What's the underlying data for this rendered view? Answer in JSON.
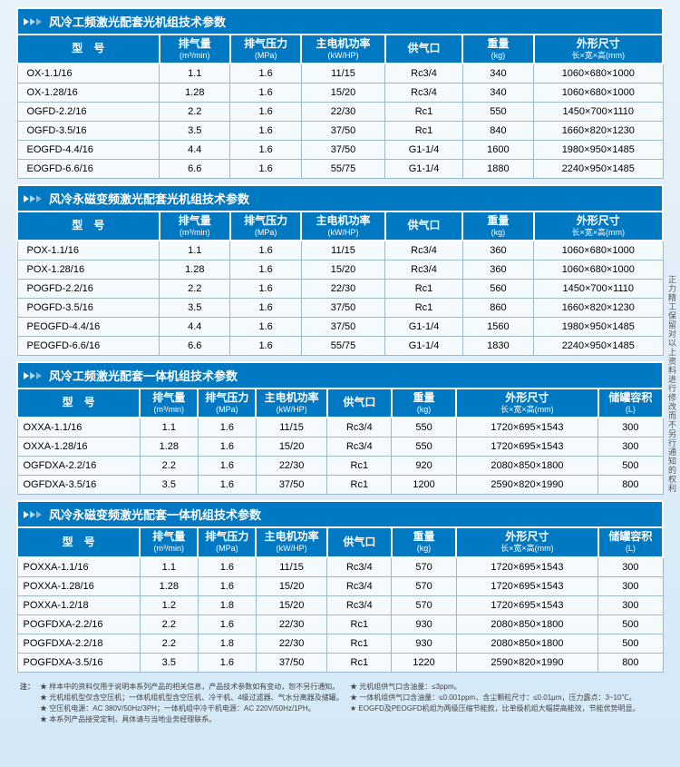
{
  "side_text": "正力精工保留对以上资料进行修改而不另行通知的权利",
  "headers7": {
    "model": "型　号",
    "displacement": "排气量",
    "displacement_sub": "(m³/min)",
    "pressure": "排气压力",
    "pressure_sub": "(MPa)",
    "power": "主电机功率",
    "power_sub": "(kW/HP)",
    "outlet": "供气口",
    "weight": "重量",
    "weight_sub": "(kg)",
    "dims": "外形尺寸",
    "dims_sub": "长×宽×高(mm)"
  },
  "headers8": {
    "model": "型　号",
    "displacement": "排气量",
    "displacement_sub": "(m³/min)",
    "pressure": "排气压力",
    "pressure_sub": "(MPa)",
    "power": "主电机功率",
    "power_sub": "(kW/HP)",
    "outlet": "供气口",
    "weight": "重量",
    "weight_sub": "(kg)",
    "dims": "外形尺寸",
    "dims_sub": "长×宽×高(mm)",
    "tank": "储罐容积",
    "tank_sub": "(L)"
  },
  "sections": [
    {
      "title": "风冷工频激光配套光机组技术参数",
      "cols": 7,
      "rows": [
        [
          "OX-1.1/16",
          "1.1",
          "1.6",
          "11/15",
          "Rc3/4",
          "340",
          "1060×680×1000"
        ],
        [
          "OX-1.28/16",
          "1.28",
          "1.6",
          "15/20",
          "Rc3/4",
          "340",
          "1060×680×1000"
        ],
        [
          "OGFD-2.2/16",
          "2.2",
          "1.6",
          "22/30",
          "Rc1",
          "550",
          "1450×700×1110"
        ],
        [
          "OGFD-3.5/16",
          "3.5",
          "1.6",
          "37/50",
          "Rc1",
          "840",
          "1660×820×1230"
        ],
        [
          "EOGFD-4.4/16",
          "4.4",
          "1.6",
          "37/50",
          "G1-1/4",
          "1600",
          "1980×950×1485"
        ],
        [
          "EOGFD-6.6/16",
          "6.6",
          "1.6",
          "55/75",
          "G1-1/4",
          "1880",
          "2240×950×1485"
        ]
      ]
    },
    {
      "title": "风冷永磁变频激光配套光机组技术参数",
      "cols": 7,
      "rows": [
        [
          "POX-1.1/16",
          "1.1",
          "1.6",
          "11/15",
          "Rc3/4",
          "360",
          "1060×680×1000"
        ],
        [
          "POX-1.28/16",
          "1.28",
          "1.6",
          "15/20",
          "Rc3/4",
          "360",
          "1060×680×1000"
        ],
        [
          "POGFD-2.2/16",
          "2.2",
          "1.6",
          "22/30",
          "Rc1",
          "560",
          "1450×700×1110"
        ],
        [
          "POGFD-3.5/16",
          "3.5",
          "1.6",
          "37/50",
          "Rc1",
          "860",
          "1660×820×1230"
        ],
        [
          "PEOGFD-4.4/16",
          "4.4",
          "1.6",
          "37/50",
          "G1-1/4",
          "1560",
          "1980×950×1485"
        ],
        [
          "PEOGFD-6.6/16",
          "6.6",
          "1.6",
          "55/75",
          "G1-1/4",
          "1830",
          "2240×950×1485"
        ]
      ]
    },
    {
      "title": "风冷工频激光配套一体机组技术参数",
      "cols": 8,
      "rows": [
        [
          "OXXA-1.1/16",
          "1.1",
          "1.6",
          "11/15",
          "Rc3/4",
          "550",
          "1720×695×1543",
          "300"
        ],
        [
          "OXXA-1.28/16",
          "1.28",
          "1.6",
          "15/20",
          "Rc3/4",
          "550",
          "1720×695×1543",
          "300"
        ],
        [
          "OGFDXA-2.2/16",
          "2.2",
          "1.6",
          "22/30",
          "Rc1",
          "920",
          "2080×850×1800",
          "500"
        ],
        [
          "OGFDXA-3.5/16",
          "3.5",
          "1.6",
          "37/50",
          "Rc1",
          "1200",
          "2590×820×1990",
          "800"
        ]
      ]
    },
    {
      "title": "风冷永磁变频激光配套一体机组技术参数",
      "cols": 8,
      "rows": [
        [
          "POXXA-1.1/16",
          "1.1",
          "1.6",
          "11/15",
          "Rc3/4",
          "570",
          "1720×695×1543",
          "300"
        ],
        [
          "POXXA-1.28/16",
          "1.28",
          "1.6",
          "15/20",
          "Rc3/4",
          "570",
          "1720×695×1543",
          "300"
        ],
        [
          "POXXA-1.2/18",
          "1.2",
          "1.8",
          "15/20",
          "Rc3/4",
          "570",
          "1720×695×1543",
          "300"
        ],
        [
          "POGFDXA-2.2/16",
          "2.2",
          "1.6",
          "22/30",
          "Rc1",
          "930",
          "2080×850×1800",
          "500"
        ],
        [
          "POGFDXA-2.2/18",
          "2.2",
          "1.8",
          "22/30",
          "Rc1",
          "930",
          "2080×850×1800",
          "500"
        ],
        [
          "POGFDXA-3.5/16",
          "3.5",
          "1.6",
          "37/50",
          "Rc1",
          "1220",
          "2590×820×1990",
          "800"
        ]
      ]
    }
  ],
  "notes_label": "注：",
  "notes_left": [
    "样本中的资料仅用于说明本系列产品的相关信息，产品技术参数如有变动，恕不另行通知。",
    "光机组机型仅含空压机；一体机组机型含空压机、冷干机、4级过滤器、气水分离器及储罐。",
    "空压机电源：AC 380V/50Hz/3PH；一体机组中冷干机电源：AC 220V/50Hz/1PH。",
    "本系列产品接受定制，具体请与当地业务经理联系。"
  ],
  "notes_right": [
    "光机组供气口含油量：≤3ppm。",
    "一体机组供气口含油量：≤0.001ppm，含尘颗粒尺寸：≤0.01μm，压力露点：3~10℃。",
    "EOGFD及PEOGFD机组为两级压缩节能款，比单级机组大幅提高能效，节能优势明显。"
  ]
}
